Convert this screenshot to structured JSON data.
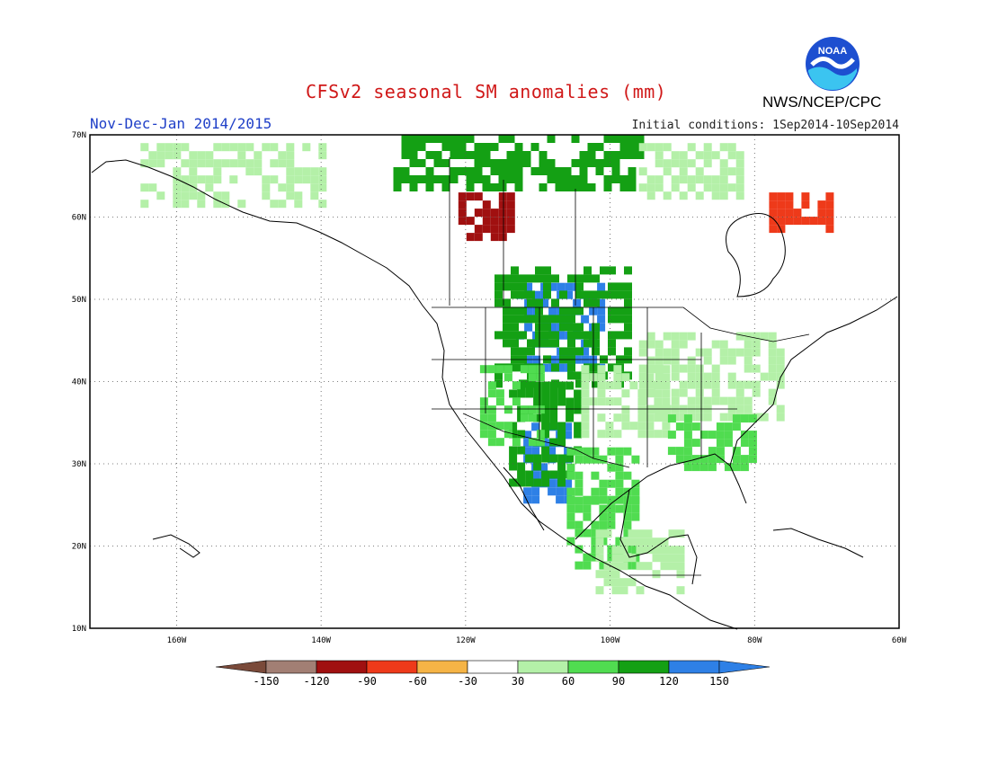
{
  "header": {
    "title": "CFSv2 seasonal SM anomalies (mm)",
    "period": "Nov-Dec-Jan 2014/2015",
    "initial_conditions": "Initial conditions: 1Sep2014-10Sep2014",
    "agency": "NWS/NCEP/CPC",
    "logo_text": "NOAA"
  },
  "map": {
    "lon_range": [
      -172,
      -60
    ],
    "lat_range": [
      10,
      70
    ],
    "lon_ticks": [
      {
        "value": -160,
        "label": "160W"
      },
      {
        "value": -140,
        "label": "140W"
      },
      {
        "value": -120,
        "label": "120W"
      },
      {
        "value": -100,
        "label": "100W"
      },
      {
        "value": -80,
        "label": "80W"
      },
      {
        "value": -60,
        "label": "60W"
      }
    ],
    "lat_ticks": [
      {
        "value": 10,
        "label": "10N"
      },
      {
        "value": 20,
        "label": "20N"
      },
      {
        "value": 30,
        "label": "30N"
      },
      {
        "value": 40,
        "label": "40N"
      },
      {
        "value": 50,
        "label": "50N"
      },
      {
        "value": 60,
        "label": "60N"
      },
      {
        "value": 70,
        "label": "70N"
      }
    ],
    "gridlines": "dotted"
  },
  "colorbar": {
    "colors": [
      "#7a4a3a",
      "#a27f74",
      "#a01010",
      "#ee3a1a",
      "#f5b446",
      "#ffffff",
      "#b4f0a8",
      "#50dc50",
      "#14a014",
      "#2e80e6",
      "#2e80e6"
    ],
    "labels": [
      "-150",
      "-120",
      "-90",
      "-60",
      "-30",
      "30",
      "60",
      "90",
      "120",
      "150"
    ]
  },
  "anomaly_regions": [
    {
      "name": "northern-rockies-plains",
      "category": 150,
      "lon": [
        -113,
        -101
      ],
      "lat": [
        42,
        52
      ]
    },
    {
      "name": "northern-plains-green",
      "category": 120,
      "lon": [
        -116,
        -98
      ],
      "lat": [
        40,
        54
      ]
    },
    {
      "name": "southwest-mexico",
      "category": 150,
      "lon": [
        -112,
        -106
      ],
      "lat": [
        26,
        35
      ]
    },
    {
      "name": "southern-rockies",
      "category": 120,
      "lon": [
        -114,
        -104
      ],
      "lat": [
        28,
        40
      ]
    },
    {
      "name": "great-basin",
      "category": 90,
      "lon": [
        -118,
        -110
      ],
      "lat": [
        33,
        42
      ]
    },
    {
      "name": "central-plains",
      "category": 60,
      "lon": [
        -104,
        -92
      ],
      "lat": [
        34,
        42
      ]
    },
    {
      "name": "great-lakes",
      "category": 60,
      "lon": [
        -96,
        -76
      ],
      "lat": [
        36,
        46
      ]
    },
    {
      "name": "southeast",
      "category": 90,
      "lon": [
        -92,
        -80
      ],
      "lat": [
        30,
        36
      ]
    },
    {
      "name": "texas-gulf",
      "category": 90,
      "lon": [
        -106,
        -96
      ],
      "lat": [
        26,
        32
      ]
    },
    {
      "name": "mexico-central",
      "category": 90,
      "lon": [
        -106,
        -96
      ],
      "lat": [
        18,
        26
      ]
    },
    {
      "name": "mexico-south",
      "category": 60,
      "lon": [
        -102,
        -90
      ],
      "lat": [
        15,
        22
      ]
    },
    {
      "name": "yukon-dry",
      "category": -90,
      "lon": [
        -121,
        -114
      ],
      "lat": [
        58,
        63
      ]
    },
    {
      "name": "alaska-north",
      "category": 60,
      "lon": [
        -165,
        -140
      ],
      "lat": [
        62,
        69
      ]
    },
    {
      "name": "arctic-islands",
      "category": 120,
      "lon": [
        -130,
        -96
      ],
      "lat": [
        64,
        70
      ]
    },
    {
      "name": "arctic-east",
      "category": 60,
      "lon": [
        -96,
        -82
      ],
      "lat": [
        63,
        69
      ]
    },
    {
      "name": "hudson-east-dry",
      "category": -60,
      "lon": [
        -78,
        -70
      ],
      "lat": [
        59,
        63
      ]
    }
  ]
}
